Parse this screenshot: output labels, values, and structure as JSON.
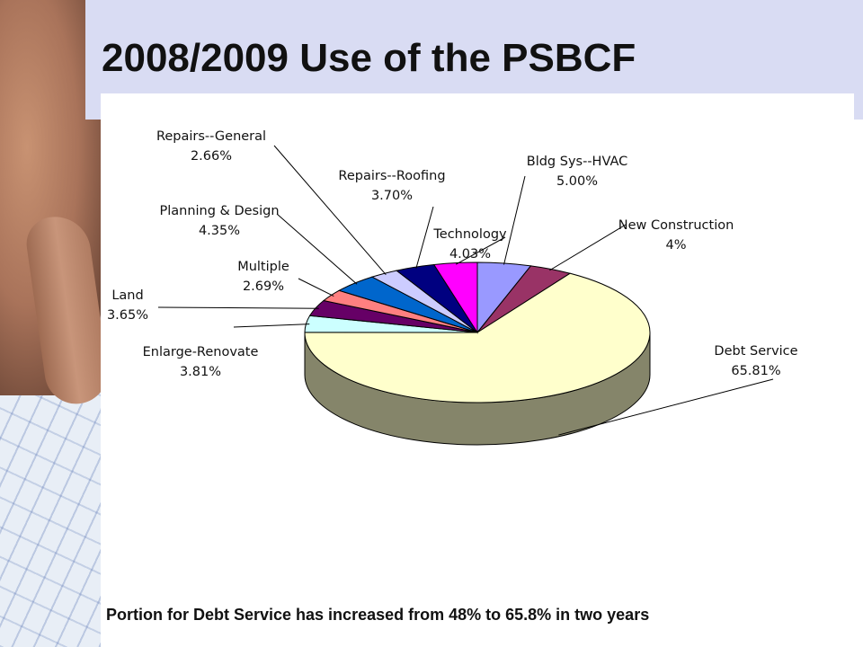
{
  "slide": {
    "title": "2008/2009 Use of the PSBCF",
    "caption": "Portion for Debt Service has increased from 48% to 65.8% in two years"
  },
  "chart_data": {
    "type": "pie",
    "style": "3d",
    "slices": [
      {
        "label": "Bldg Sys--HVAC",
        "value_text": "5.00%",
        "value": 5.0,
        "color": "#9999ff"
      },
      {
        "label": "New  Construction",
        "value_text": "4%",
        "value": 4.0,
        "color": "#993366"
      },
      {
        "label": "Debt Service",
        "value_text": "65.81%",
        "value": 65.81,
        "color": "#ffffcc"
      },
      {
        "label": "Enlarge-Renovate",
        "value_text": "3.81%",
        "value": 3.81,
        "color": "#ccffff"
      },
      {
        "label": "Land",
        "value_text": "3.65%",
        "value": 3.65,
        "color": "#660066"
      },
      {
        "label": "Multiple",
        "value_text": "2.69%",
        "value": 2.69,
        "color": "#ff8080"
      },
      {
        "label": "Planning & Design",
        "value_text": "4.35%",
        "value": 4.35,
        "color": "#0066cc"
      },
      {
        "label": "Repairs--General",
        "value_text": "2.66%",
        "value": 2.66,
        "color": "#ccccff"
      },
      {
        "label": "Repairs--Roofing",
        "value_text": "3.70%",
        "value": 3.7,
        "color": "#000080"
      },
      {
        "label": "Technology",
        "value_text": "4.03%",
        "value": 4.03,
        "color": "#ff00ff"
      }
    ]
  }
}
